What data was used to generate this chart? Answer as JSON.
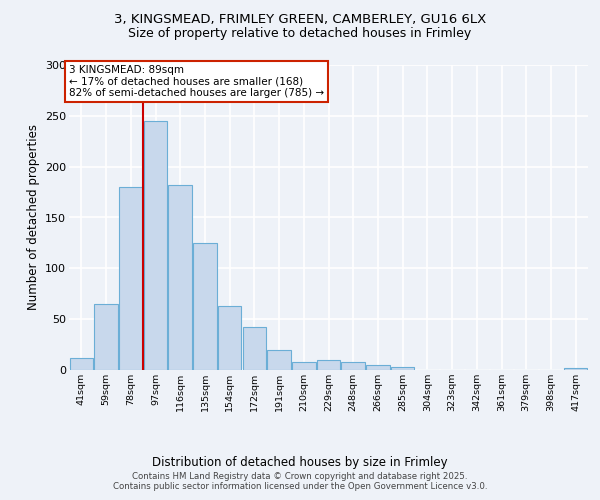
{
  "title_line1": "3, KINGSMEAD, FRIMLEY GREEN, CAMBERLEY, GU16 6LX",
  "title_line2": "Size of property relative to detached houses in Frimley",
  "xlabel": "Distribution of detached houses by size in Frimley",
  "ylabel": "Number of detached properties",
  "categories": [
    "41sqm",
    "59sqm",
    "78sqm",
    "97sqm",
    "116sqm",
    "135sqm",
    "154sqm",
    "172sqm",
    "191sqm",
    "210sqm",
    "229sqm",
    "248sqm",
    "266sqm",
    "285sqm",
    "304sqm",
    "323sqm",
    "342sqm",
    "361sqm",
    "379sqm",
    "398sqm",
    "417sqm"
  ],
  "values": [
    12,
    65,
    180,
    245,
    182,
    125,
    63,
    42,
    20,
    8,
    10,
    8,
    5,
    3,
    0,
    0,
    0,
    0,
    0,
    0,
    2
  ],
  "bar_color": "#c8d8ec",
  "bar_edge_color": "#6baed6",
  "annotation_text": "3 KINGSMEAD: 89sqm\n← 17% of detached houses are smaller (168)\n82% of semi-detached houses are larger (785) →",
  "vline_color": "#cc0000",
  "vline_x": 2.5,
  "background_color": "#eef2f8",
  "grid_color": "#ffffff",
  "footer_text": "Contains HM Land Registry data © Crown copyright and database right 2025.\nContains public sector information licensed under the Open Government Licence v3.0.",
  "ylim": [
    0,
    300
  ],
  "yticks": [
    0,
    50,
    100,
    150,
    200,
    250,
    300
  ]
}
